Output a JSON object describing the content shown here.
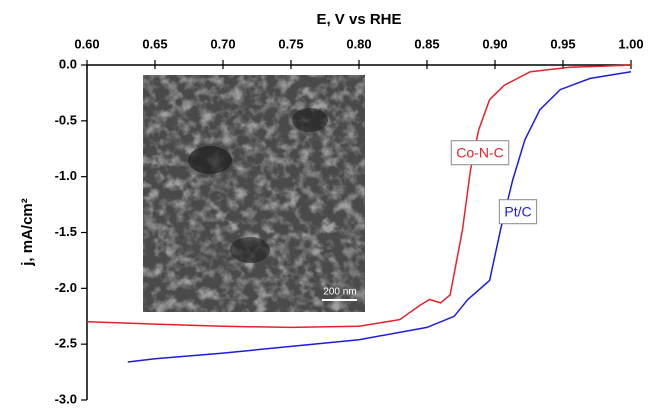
{
  "chart_data": {
    "type": "line",
    "x_label": "E, V vs RHE",
    "y_label": "j, mA/cm²",
    "inset_scale_label": "200 nm",
    "xlim": [
      0.6,
      1.0
    ],
    "xticks": [
      {
        "value": 0.6,
        "label": "0.60"
      },
      {
        "value": 0.65,
        "label": "0.65"
      },
      {
        "value": 0.7,
        "label": "0.70"
      },
      {
        "value": 0.75,
        "label": "0.75"
      },
      {
        "value": 0.8,
        "label": "0.80"
      },
      {
        "value": 0.85,
        "label": "0.85"
      },
      {
        "value": 0.9,
        "label": "0.90"
      },
      {
        "value": 0.95,
        "label": "0.95"
      },
      {
        "value": 1.0,
        "label": "1.00"
      }
    ],
    "ylim": [
      0,
      -3
    ],
    "yticks": [
      {
        "value": 0,
        "label": "0.0"
      },
      {
        "value": -0.5,
        "label": "-0.5"
      },
      {
        "value": -1.0,
        "label": "-1.0"
      },
      {
        "value": -1.5,
        "label": "-1.5"
      },
      {
        "value": -2.0,
        "label": "-2.0"
      },
      {
        "value": -2.5,
        "label": "-2.5"
      },
      {
        "value": -3.0,
        "label": "-3.0"
      }
    ],
    "series": [
      {
        "name": "Co-N-C",
        "color": "#e8202a",
        "x": [
          0.6,
          0.65,
          0.7,
          0.75,
          0.8,
          0.83,
          0.845,
          0.852,
          0.86,
          0.867,
          0.876,
          0.882,
          0.888,
          0.896,
          0.907,
          0.926,
          0.955,
          0.98,
          1.0
        ],
        "values": [
          -2.3,
          -2.32,
          -2.34,
          -2.35,
          -2.34,
          -2.28,
          -2.15,
          -2.1,
          -2.13,
          -2.06,
          -1.48,
          -0.94,
          -0.58,
          -0.31,
          -0.18,
          -0.06,
          -0.02,
          -0.01,
          0
        ]
      },
      {
        "name": "Pt/C",
        "color": "#1c1ce0",
        "x": [
          0.63,
          0.65,
          0.7,
          0.75,
          0.8,
          0.85,
          0.87,
          0.88,
          0.896,
          0.904,
          0.913,
          0.922,
          0.933,
          0.948,
          0.97,
          1.0
        ],
        "values": [
          -2.66,
          -2.63,
          -2.58,
          -2.52,
          -2.46,
          -2.35,
          -2.25,
          -2.1,
          -1.93,
          -1.48,
          -1.03,
          -0.67,
          -0.4,
          -0.22,
          -0.12,
          -0.06
        ]
      }
    ]
  }
}
